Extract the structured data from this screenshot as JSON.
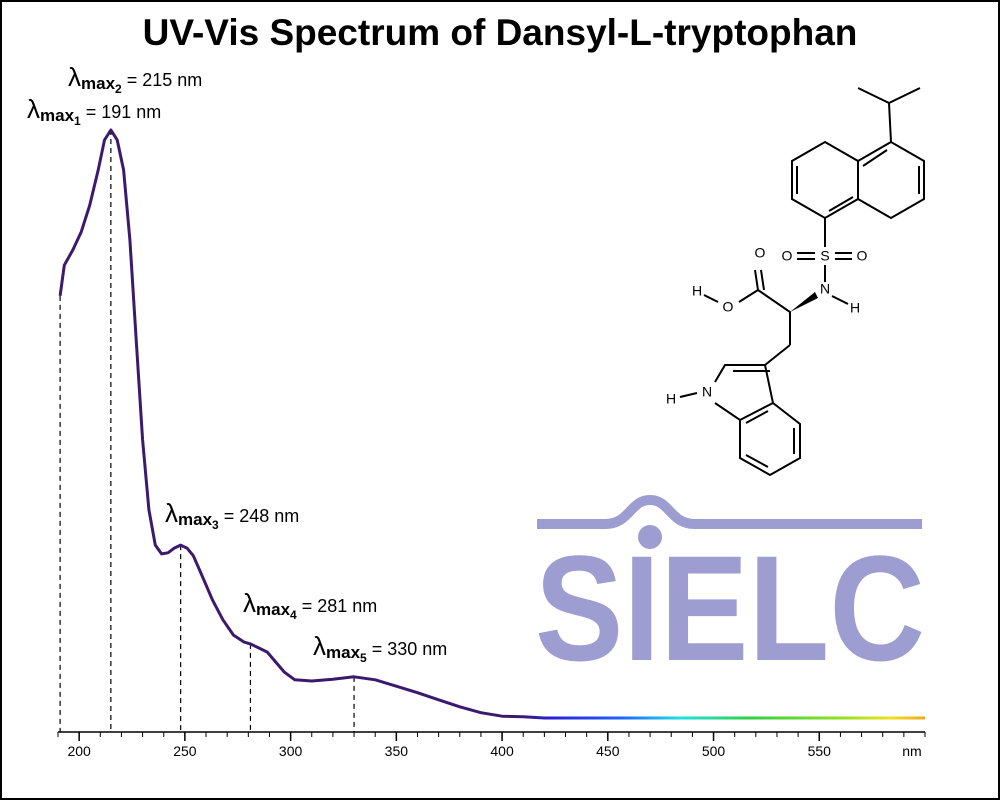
{
  "chart_data": {
    "type": "line",
    "title": "UV-Vis Spectrum of Dansyl-L-tryptophan",
    "x_label": "nm",
    "x": [
      191,
      193,
      197,
      201,
      205,
      209,
      212,
      215,
      218,
      221,
      224,
      227,
      230,
      233,
      236,
      239,
      242,
      245,
      248,
      251,
      254,
      258,
      263,
      268,
      273,
      278,
      281,
      285,
      289,
      293,
      297,
      302,
      310,
      320,
      330,
      340,
      350,
      360,
      370,
      380,
      390,
      400,
      410,
      420,
      450,
      500,
      550,
      600
    ],
    "series": [
      {
        "color": "#3b1a6e",
        "values": [
          0.718,
          0.77,
          0.796,
          0.827,
          0.872,
          0.932,
          0.983,
          1.0,
          0.983,
          0.932,
          0.813,
          0.643,
          0.473,
          0.354,
          0.294,
          0.279,
          0.281,
          0.289,
          0.294,
          0.289,
          0.276,
          0.243,
          0.201,
          0.167,
          0.141,
          0.129,
          0.126,
          0.119,
          0.112,
          0.095,
          0.078,
          0.065,
          0.063,
          0.066,
          0.07,
          0.065,
          0.054,
          0.043,
          0.031,
          0.019,
          0.009,
          0.003,
          0.002,
          0,
          0,
          0,
          0,
          0
        ]
      }
    ],
    "xlim": [
      190,
      600
    ],
    "ylim": [
      0,
      1
    ],
    "xticks": [
      200,
      250,
      300,
      350,
      400,
      450,
      500,
      550
    ],
    "xminor_ticks": [
      190,
      200,
      210,
      220,
      230,
      240,
      250,
      260,
      270,
      280,
      290,
      300,
      310,
      320,
      330,
      340,
      350,
      360,
      370,
      380,
      390,
      400,
      410,
      420,
      430,
      440,
      450,
      460,
      470,
      480,
      490,
      500,
      510,
      520,
      530,
      540,
      550,
      560,
      570,
      580,
      590,
      600
    ],
    "peaks": [
      {
        "symbol": "λ",
        "subscript": "max",
        "index": "1",
        "value": 191,
        "label": "= 191 nm"
      },
      {
        "symbol": "λ",
        "subscript": "max",
        "index": "2",
        "value": 215,
        "label": "= 215 nm"
      },
      {
        "symbol": "λ",
        "subscript": "max",
        "index": "3",
        "value": 248,
        "label": "= 248 nm"
      },
      {
        "symbol": "λ",
        "subscript": "max",
        "index": "4",
        "value": 281,
        "label": "= 281 nm"
      },
      {
        "symbol": "λ",
        "subscript": "max",
        "index": "5",
        "value": 330,
        "label": "= 330 nm"
      }
    ],
    "structure_labels": [
      "O",
      "O",
      "S",
      "O",
      "N",
      "H",
      "H",
      "O",
      "H",
      "N"
    ],
    "logo": "SIELC"
  }
}
